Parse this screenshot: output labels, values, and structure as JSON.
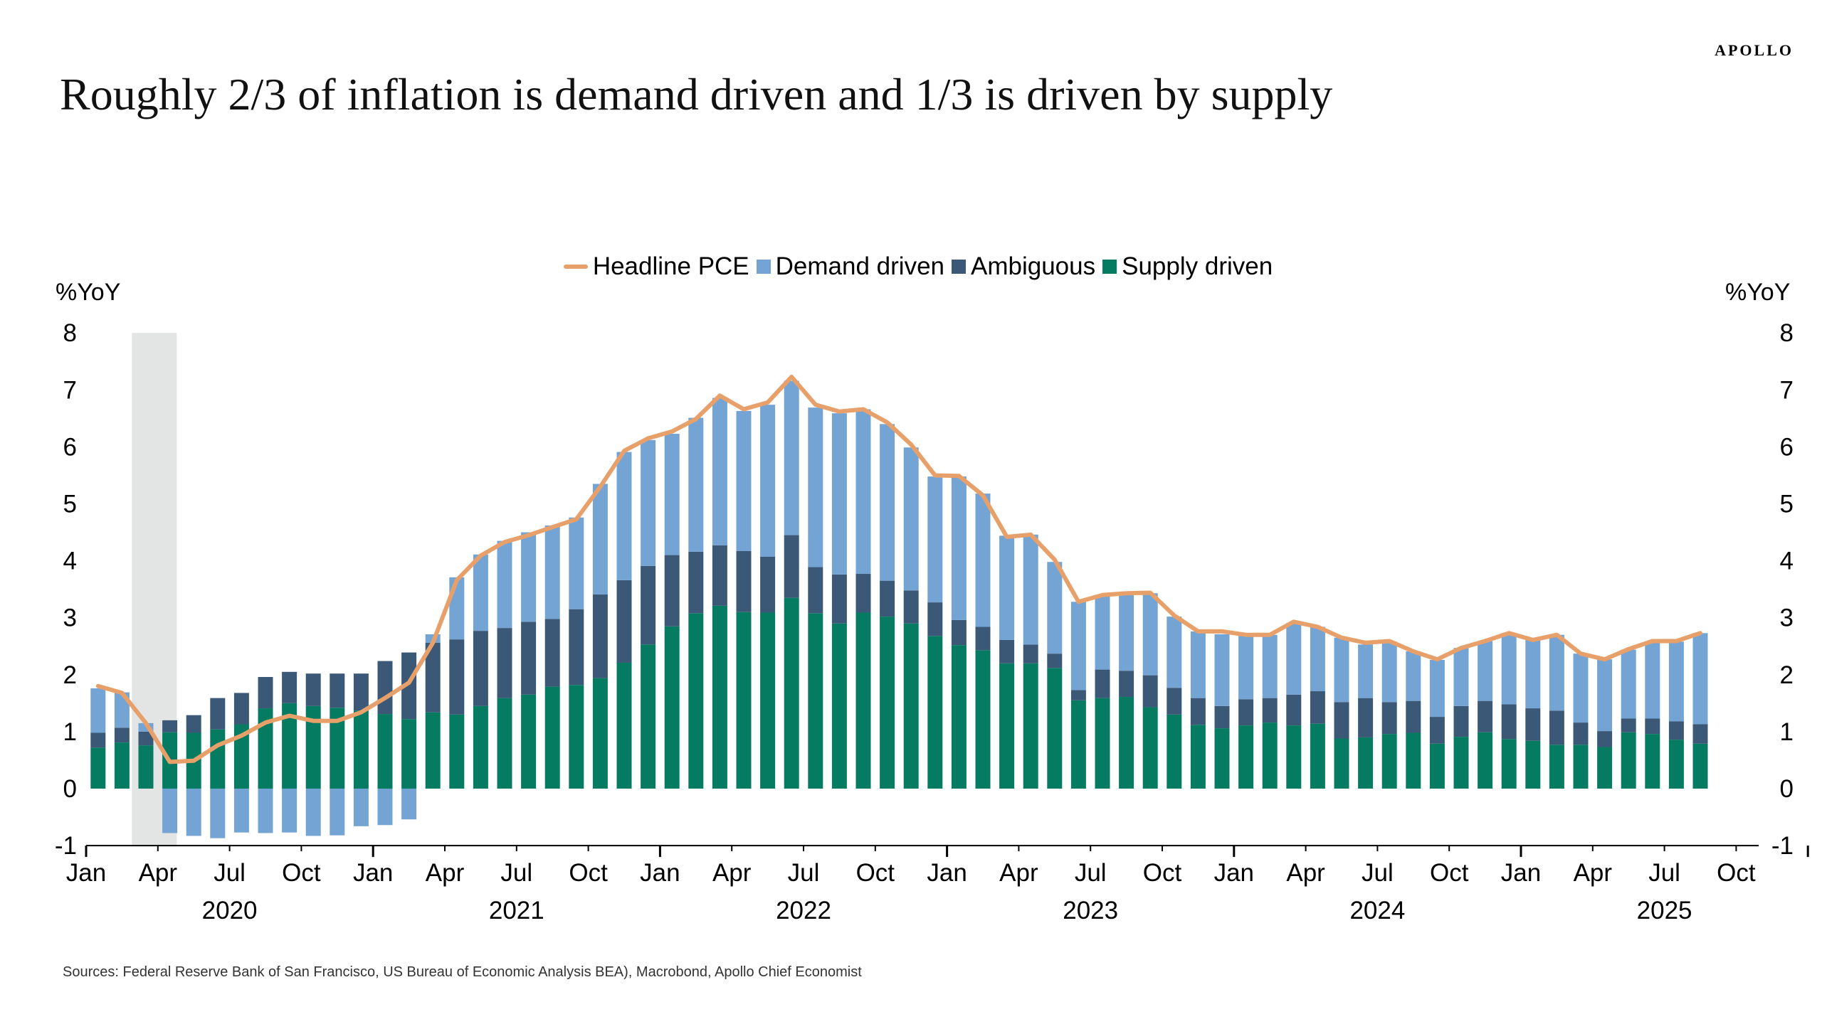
{
  "brand": "APOLLO",
  "title": "Roughly 2/3 of inflation is demand driven and 1/3 is driven by supply",
  "source": "Sources: Federal Reserve Bank of San Francisco, US Bureau of Economic Analysis BEA), Macrobond, Apollo Chief Economist",
  "chart_data": {
    "type": "bar",
    "stacked": true,
    "ylabel_left": "%YoY",
    "ylabel_right": "%YoY",
    "ylim": [
      -1,
      8
    ],
    "y_ticks": [
      "-1",
      "0",
      "1",
      "2",
      "3",
      "4",
      "5",
      "6",
      "7",
      "8"
    ],
    "grid": false,
    "legend_position": "top",
    "x_range": [
      "2020-01",
      "2025-10"
    ],
    "x_tick_labels": [
      "Jan",
      "Apr",
      "Jul",
      "Oct",
      "Jan",
      "Apr",
      "Jul",
      "Oct",
      "Jan",
      "Apr",
      "Jul",
      "Oct",
      "Jan",
      "Apr",
      "Jul",
      "Oct",
      "Jan",
      "Apr",
      "Jul",
      "Oct",
      "Jan",
      "Apr",
      "Jul",
      "Oct"
    ],
    "year_labels": [
      "2020",
      "2021",
      "2022",
      "2023",
      "2024",
      "2025"
    ],
    "shaded_period": [
      "2020-03",
      "2020-04"
    ],
    "first_month": "2020-01",
    "colors": {
      "pce": "#E8A06B",
      "demand": "#74A4D4",
      "ambiguous": "#3B5977",
      "supply": "#057C62",
      "shade": "#E3E5E5"
    },
    "series": [
      {
        "name": "Headline PCE",
        "type": "line",
        "values": [
          1.8,
          1.68,
          1.15,
          0.47,
          0.49,
          0.76,
          0.93,
          1.16,
          1.28,
          1.19,
          1.19,
          1.34,
          1.59,
          1.86,
          2.56,
          3.66,
          4.09,
          4.33,
          4.45,
          4.59,
          4.73,
          5.3,
          5.93,
          6.15,
          6.27,
          6.49,
          6.9,
          6.66,
          6.78,
          7.23,
          6.74,
          6.62,
          6.66,
          6.43,
          6.04,
          5.5,
          5.49,
          5.15,
          4.42,
          4.46,
          4.02,
          3.28,
          3.4,
          3.43,
          3.44,
          3.04,
          2.76,
          2.76,
          2.7,
          2.7,
          2.93,
          2.84,
          2.65,
          2.56,
          2.59,
          2.41,
          2.27,
          2.47,
          2.59,
          2.73,
          2.61,
          2.7,
          2.37,
          2.27,
          2.45,
          2.59,
          2.59,
          2.73
        ]
      },
      {
        "name": "Demand driven",
        "type": "bar",
        "values": [
          0.78,
          0.62,
          0.15,
          -0.78,
          -0.83,
          -0.87,
          -0.77,
          -0.78,
          -0.77,
          -0.83,
          -0.82,
          -0.66,
          -0.64,
          -0.54,
          0.15,
          1.09,
          1.34,
          1.53,
          1.57,
          1.64,
          1.61,
          1.94,
          2.25,
          2.21,
          2.13,
          2.35,
          2.59,
          2.46,
          2.67,
          2.71,
          2.8,
          2.83,
          2.89,
          2.75,
          2.51,
          2.21,
          2.52,
          2.34,
          1.83,
          1.93,
          1.61,
          1.55,
          1.29,
          1.34,
          1.44,
          1.25,
          1.17,
          1.26,
          1.11,
          1.11,
          1.26,
          1.13,
          1.13,
          0.94,
          1.06,
          0.87,
          1.0,
          1.02,
          1.05,
          1.25,
          1.2,
          1.33,
          1.21,
          1.26,
          1.21,
          1.33,
          1.4,
          1.6
        ]
      },
      {
        "name": "Ambiguous",
        "type": "bar",
        "values": [
          0.26,
          0.26,
          0.24,
          0.21,
          0.31,
          0.55,
          0.55,
          0.55,
          0.55,
          0.57,
          0.6,
          0.65,
          0.93,
          1.17,
          1.22,
          1.32,
          1.32,
          1.23,
          1.28,
          1.19,
          1.33,
          1.47,
          1.45,
          1.38,
          1.25,
          1.08,
          1.06,
          1.07,
          0.98,
          1.1,
          0.81,
          0.86,
          0.68,
          0.63,
          0.58,
          0.59,
          0.44,
          0.41,
          0.41,
          0.33,
          0.25,
          0.18,
          0.5,
          0.46,
          0.56,
          0.47,
          0.47,
          0.39,
          0.46,
          0.43,
          0.54,
          0.57,
          0.64,
          0.69,
          0.56,
          0.56,
          0.47,
          0.54,
          0.55,
          0.61,
          0.57,
          0.6,
          0.39,
          0.28,
          0.24,
          0.27,
          0.32,
          0.34
        ]
      },
      {
        "name": "Supply driven",
        "type": "bar",
        "values": [
          0.72,
          0.81,
          0.76,
          0.99,
          0.98,
          1.04,
          1.13,
          1.41,
          1.5,
          1.45,
          1.42,
          1.37,
          1.31,
          1.22,
          1.34,
          1.3,
          1.45,
          1.59,
          1.65,
          1.79,
          1.82,
          1.94,
          2.21,
          2.53,
          2.85,
          3.08,
          3.21,
          3.1,
          3.09,
          3.35,
          3.08,
          2.9,
          3.09,
          3.02,
          2.9,
          2.68,
          2.52,
          2.43,
          2.2,
          2.2,
          2.12,
          1.55,
          1.59,
          1.61,
          1.43,
          1.3,
          1.12,
          1.06,
          1.11,
          1.16,
          1.11,
          1.14,
          0.88,
          0.9,
          0.96,
          0.98,
          0.79,
          0.91,
          0.99,
          0.87,
          0.84,
          0.77,
          0.77,
          0.73,
          0.99,
          0.96,
          0.86,
          0.79
        ]
      }
    ]
  }
}
